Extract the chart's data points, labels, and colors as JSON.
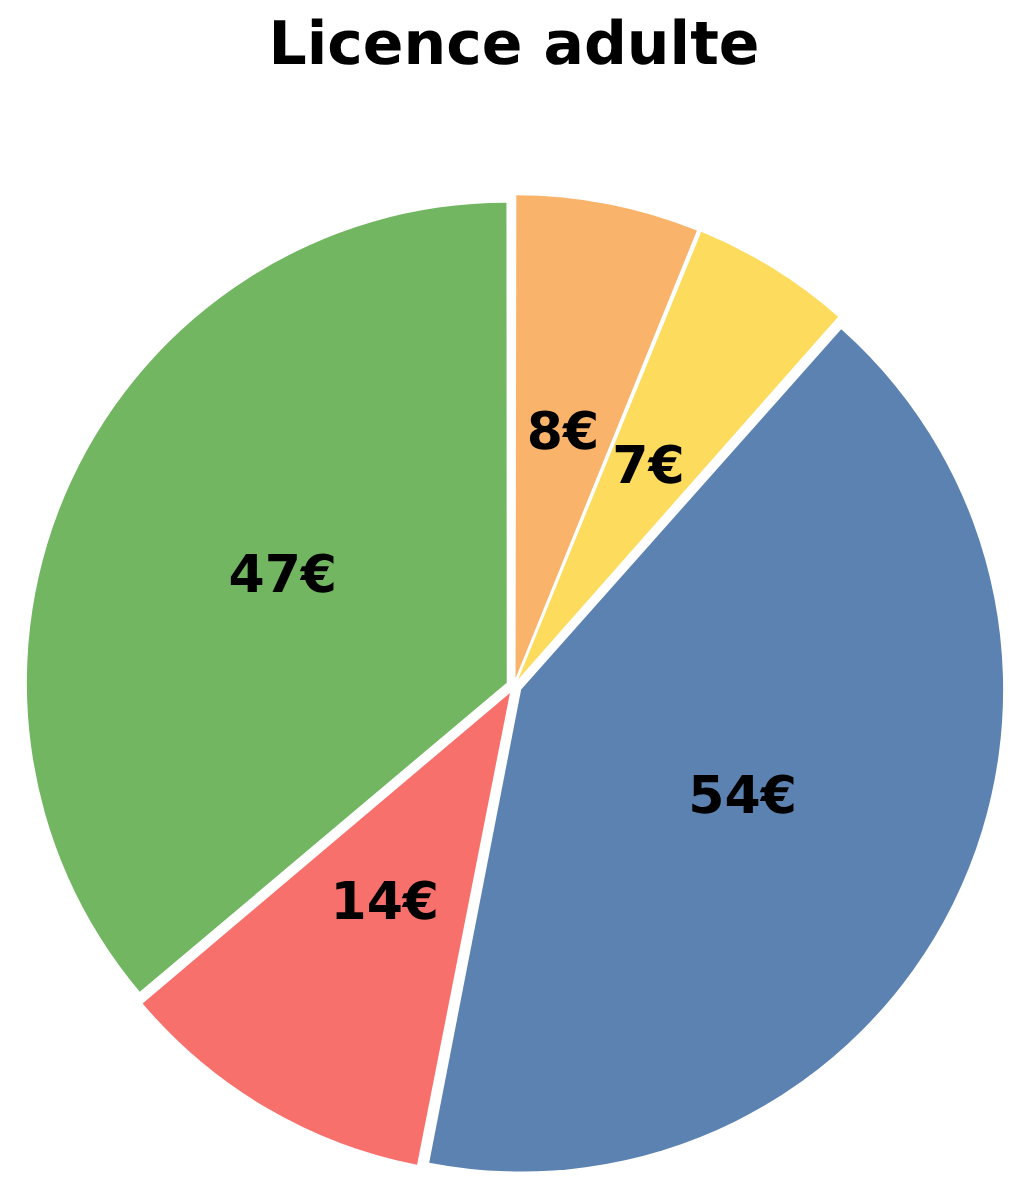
{
  "chart_data": {
    "type": "pie",
    "title": "Licence adulte",
    "categories": [
      null,
      null,
      null,
      null,
      null
    ],
    "values": [
      8,
      7,
      54,
      14,
      47
    ],
    "value_labels": [
      "8€",
      "7€",
      "54€",
      "14€",
      "47€"
    ],
    "colors": [
      "#f9b36b",
      "#fddb5c",
      "#5b82b0",
      "#f8706b",
      "#72b662"
    ],
    "legend": false
  }
}
